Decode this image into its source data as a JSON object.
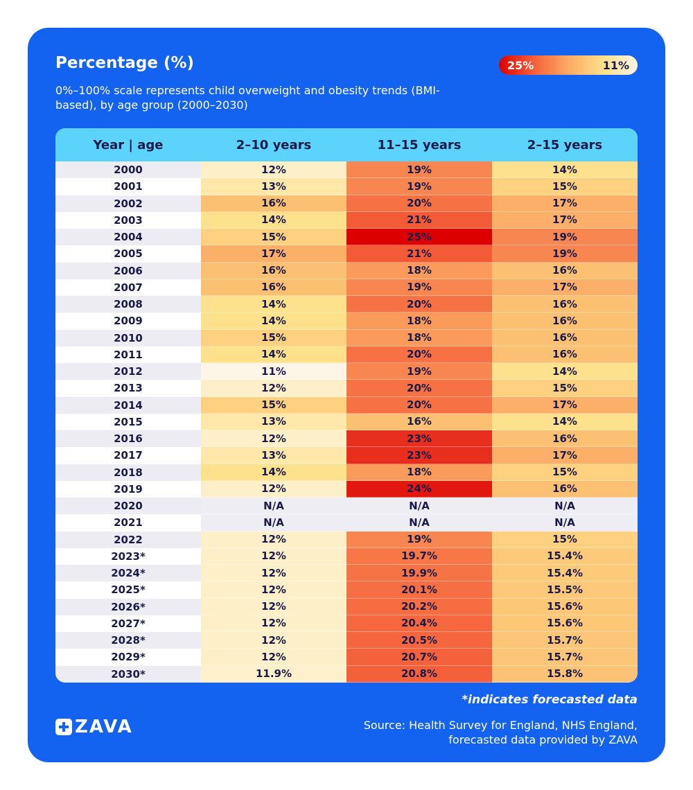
{
  "header": {
    "title": "Percentage (%)",
    "subtitle": "0%–100% scale represents child overweight and obesity trends (BMI-based), by age group (2000–2030)"
  },
  "legend": {
    "high": "25%",
    "low": "11%"
  },
  "table": {
    "columns": [
      "Year | age",
      "2–10 years",
      "11–15 years",
      "2–15 years"
    ],
    "rows": [
      [
        "2000",
        "12%",
        "19%",
        "14%"
      ],
      [
        "2001",
        "13%",
        "19%",
        "15%"
      ],
      [
        "2002",
        "16%",
        "20%",
        "17%"
      ],
      [
        "2003",
        "14%",
        "21%",
        "17%"
      ],
      [
        "2004",
        "15%",
        "25%",
        "19%"
      ],
      [
        "2005",
        "17%",
        "21%",
        "19%"
      ],
      [
        "2006",
        "16%",
        "18%",
        "16%"
      ],
      [
        "2007",
        "16%",
        "19%",
        "17%"
      ],
      [
        "2008",
        "14%",
        "20%",
        "16%"
      ],
      [
        "2009",
        "14%",
        "18%",
        "16%"
      ],
      [
        "2010",
        "15%",
        "18%",
        "16%"
      ],
      [
        "2011",
        "14%",
        "20%",
        "16%"
      ],
      [
        "2012",
        "11%",
        "19%",
        "14%"
      ],
      [
        "2013",
        "12%",
        "20%",
        "15%"
      ],
      [
        "2014",
        "15%",
        "20%",
        "17%"
      ],
      [
        "2015",
        "13%",
        "16%",
        "14%"
      ],
      [
        "2016",
        "12%",
        "23%",
        "16%"
      ],
      [
        "2017",
        "13%",
        "23%",
        "17%"
      ],
      [
        "2018",
        "14%",
        "18%",
        "15%"
      ],
      [
        "2019",
        "12%",
        "24%",
        "16%"
      ],
      [
        "2020",
        "N/A",
        "N/A",
        "N/A"
      ],
      [
        "2021",
        "N/A",
        "N/A",
        "N/A"
      ],
      [
        "2022",
        "12%",
        "19%",
        "15%"
      ],
      [
        "2023*",
        "12%",
        "19.7%",
        "15.4%"
      ],
      [
        "2024*",
        "12%",
        "19.9%",
        "15.4%"
      ],
      [
        "2025*",
        "12%",
        "20.1%",
        "15.5%"
      ],
      [
        "2026*",
        "12%",
        "20.2%",
        "15.6%"
      ],
      [
        "2027*",
        "12%",
        "20.4%",
        "15.6%"
      ],
      [
        "2028*",
        "12%",
        "20.5%",
        "15.7%"
      ],
      [
        "2029*",
        "12%",
        "20.7%",
        "15.7%"
      ],
      [
        "2030*",
        "11.9%",
        "20.8%",
        "15.8%"
      ]
    ]
  },
  "footnote": "*indicates forecasted data",
  "logo": "ZAVA",
  "source": "Source: Health Survey for England, NHS England, forecasted data provided by ZAVA"
}
